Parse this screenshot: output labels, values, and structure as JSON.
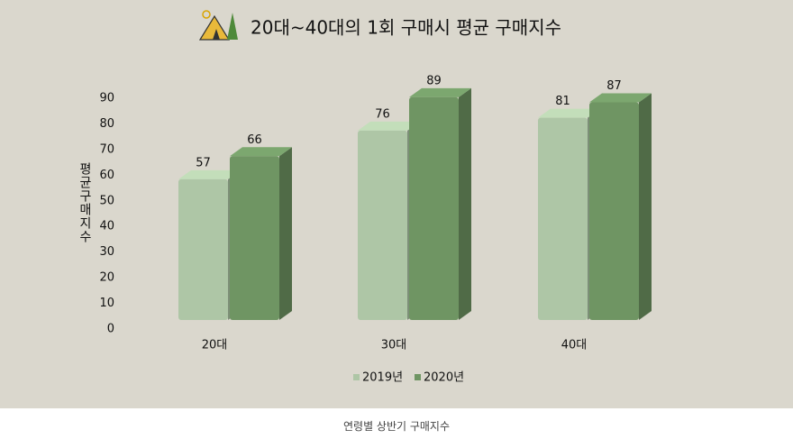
{
  "chart_data": {
    "type": "bar3d",
    "title": "20대~40대의 1회 구매시 평균 구매지수",
    "y_label": "평균구매지수",
    "caption": "연령별 상반기 구매지수",
    "categories": [
      "20대",
      "30대",
      "40대"
    ],
    "series": [
      {
        "name": "2019년",
        "color": "#aec6a6",
        "values": [
          57,
          76,
          81
        ]
      },
      {
        "name": "2020년",
        "color": "#6f9563",
        "values": [
          66,
          89,
          87
        ]
      }
    ],
    "ylim": [
      0,
      90
    ],
    "yticks": [
      0,
      10,
      20,
      30,
      40,
      50,
      60,
      70,
      80,
      90
    ]
  }
}
